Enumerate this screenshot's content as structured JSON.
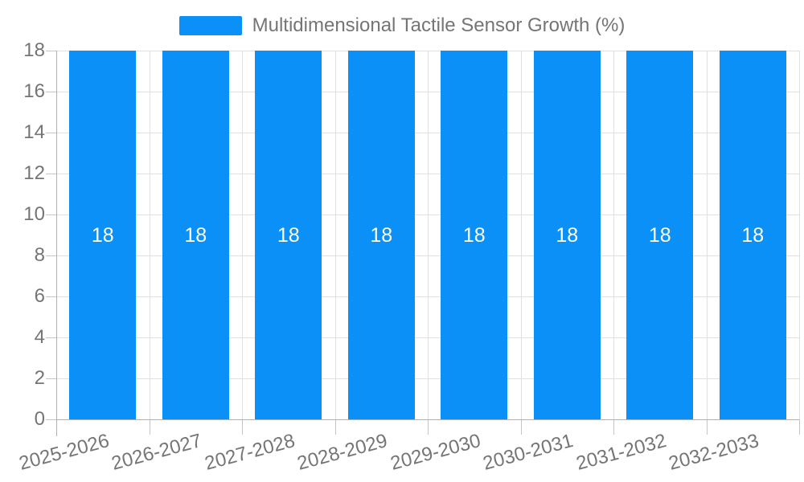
{
  "chart_data": {
    "type": "bar",
    "title": "",
    "legend": {
      "label": "Multidimensional Tactile Sensor Growth (%)",
      "position": "top-center"
    },
    "categories": [
      "2025-2026",
      "2026-2027",
      "2027-2028",
      "2028-2029",
      "2029-2030",
      "2030-2031",
      "2031-2032",
      "2032-2033"
    ],
    "series": [
      {
        "name": "Multidimensional Tactile Sensor Growth (%)",
        "values": [
          18,
          18,
          18,
          18,
          18,
          18,
          18,
          18
        ]
      }
    ],
    "xlabel": "",
    "ylabel": "",
    "ylim": [
      0,
      18
    ],
    "yticks": [
      0,
      2,
      4,
      6,
      8,
      10,
      12,
      14,
      16,
      18
    ],
    "grid": true,
    "value_labels_shown": true,
    "colors": {
      "bar": "#0a90f6",
      "grid": "#e0e0e0",
      "axis": "#b0b0b0",
      "tick": "#c4c4c4",
      "label_text": "#757575",
      "value_label_text": "#ffffff",
      "background": "#ffffff"
    }
  }
}
